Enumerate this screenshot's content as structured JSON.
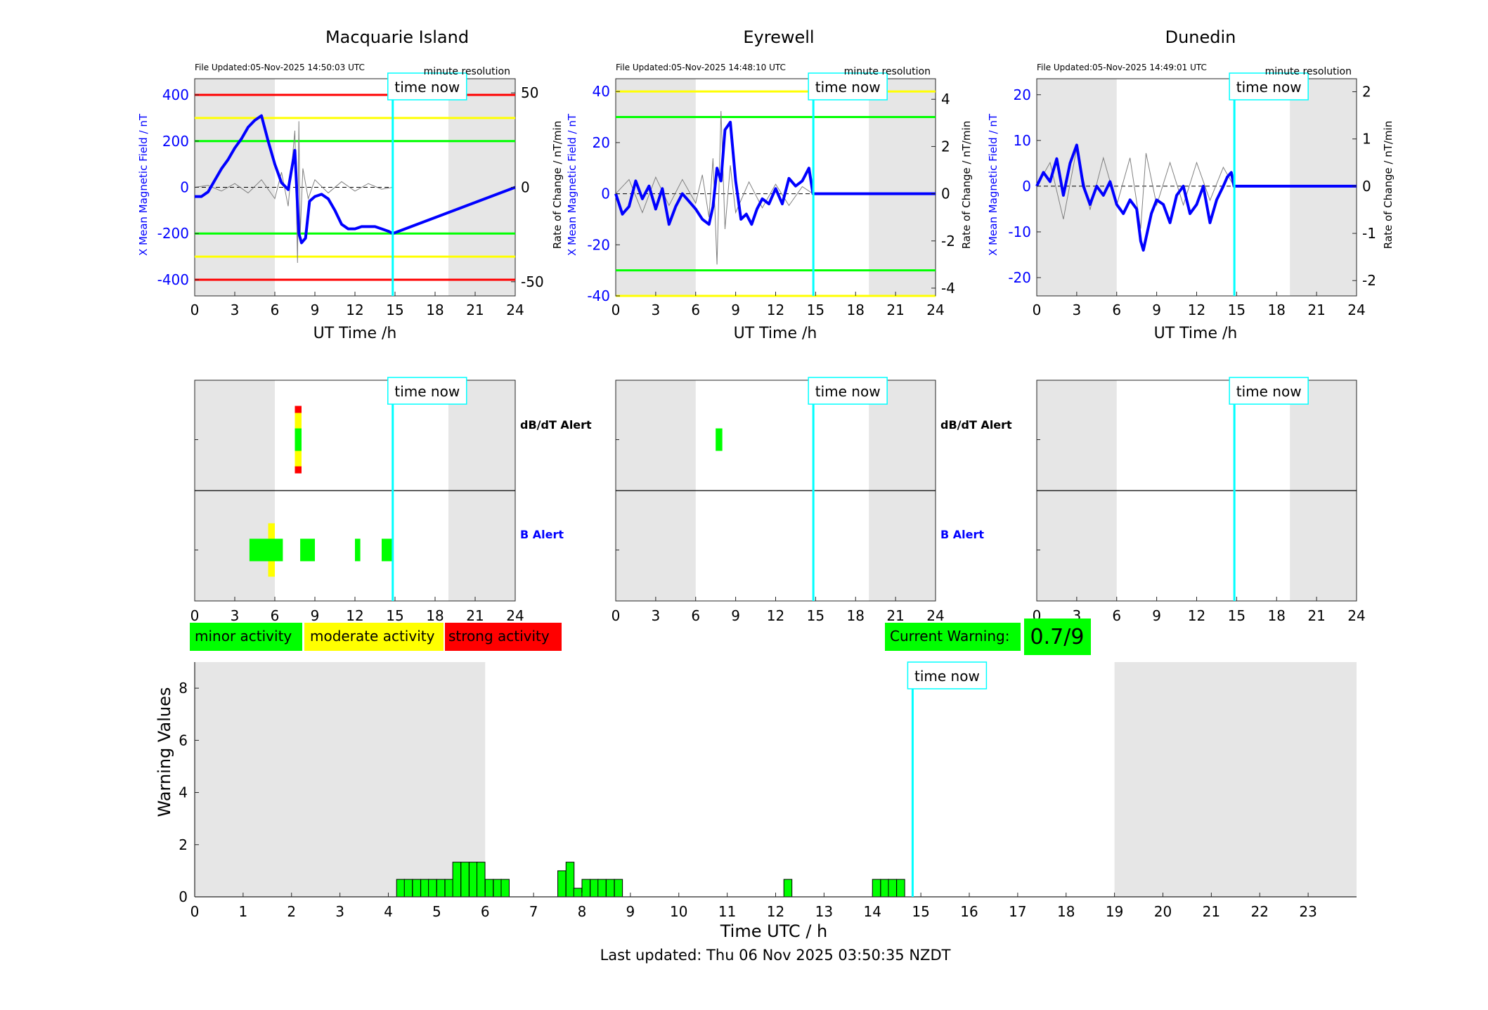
{
  "stations": [
    {
      "title": "Macquarie Island",
      "file_updated": "File Updated:05-Nov-2025 14:50:03 UTC",
      "resolution": "minute resolution",
      "ylabel_left": "X Mean Magnetic Field / nT",
      "ylabel_right": "Rate of Change / nT/min",
      "ylim": [
        -470,
        470
      ],
      "yticks_left": [
        -400,
        -200,
        0,
        200,
        400
      ],
      "right_scale": 0.125,
      "yticks_right": [
        -50,
        0,
        50
      ],
      "green_level": 200,
      "yellow_level": 300,
      "red_level": 400,
      "shaded_ranges": [
        [
          0,
          6
        ],
        [
          19,
          24
        ]
      ],
      "x_main": [
        0,
        0.5,
        1,
        1.5,
        2,
        2.5,
        3,
        3.5,
        4,
        4.5,
        5,
        5.5,
        6,
        6.5,
        7,
        7.5,
        7.8,
        8,
        8.3,
        8.6,
        9,
        9.5,
        10,
        10.5,
        11,
        11.5,
        12,
        12.5,
        13,
        13.5,
        14,
        14.5,
        14.83,
        24
      ],
      "y_main": [
        -40,
        -40,
        -20,
        30,
        80,
        120,
        170,
        210,
        260,
        290,
        310,
        200,
        100,
        20,
        -10,
        160,
        -200,
        -240,
        -220,
        -60,
        -40,
        -30,
        -50,
        -100,
        -160,
        -180,
        -180,
        -170,
        -170,
        -170,
        -180,
        -190,
        -200,
        0
      ],
      "x_rate": [
        0,
        1,
        2,
        3,
        4,
        5,
        6,
        6.5,
        7,
        7.5,
        7.7,
        7.8,
        7.9,
        8.1,
        8.5,
        9,
        10,
        11,
        12,
        13,
        14,
        14.83
      ],
      "y_rate": [
        0,
        1,
        -2,
        2,
        -3,
        4,
        -6,
        8,
        -10,
        30,
        -40,
        35,
        -25,
        10,
        -6,
        4,
        -3,
        3,
        -2,
        2,
        -1,
        0
      ]
    },
    {
      "title": "Eyrewell",
      "file_updated": "File Updated:05-Nov-2025 14:48:10 UTC",
      "resolution": "minute resolution",
      "ylabel_left": "X Mean Magnetic Field / nT",
      "ylabel_right": "Rate of Change / nT/min",
      "ylim": [
        -40,
        45
      ],
      "yticks_left": [
        -40,
        -20,
        0,
        20,
        40
      ],
      "right_scale": 10,
      "yticks_right": [
        -4,
        -2,
        0,
        2,
        4
      ],
      "green_level": 30,
      "yellow_level": 40,
      "shaded_ranges": [
        [
          0,
          6
        ],
        [
          19,
          24
        ]
      ],
      "x_main": [
        0,
        0.5,
        1,
        1.5,
        2,
        2.5,
        3,
        3.5,
        4,
        4.5,
        5,
        5.5,
        6,
        6.5,
        7,
        7.3,
        7.6,
        7.9,
        8.2,
        8.6,
        9,
        9.4,
        9.8,
        10.2,
        10.6,
        11,
        11.5,
        12,
        12.5,
        13,
        13.5,
        14,
        14.5,
        14.8,
        24
      ],
      "y_main": [
        0,
        -8,
        -5,
        5,
        -2,
        3,
        -6,
        2,
        -12,
        -5,
        0,
        -3,
        -6,
        -10,
        -12,
        -5,
        10,
        5,
        25,
        28,
        5,
        -10,
        -8,
        -12,
        -6,
        -2,
        -4,
        2,
        -4,
        6,
        3,
        5,
        10,
        0,
        0
      ],
      "x_rate": [
        0,
        1,
        2,
        3,
        4,
        5,
        6,
        6.5,
        7,
        7.3,
        7.6,
        7.9,
        8.2,
        8.6,
        9,
        10,
        11,
        12,
        13,
        14,
        14.8
      ],
      "y_rate": [
        0,
        0.6,
        -0.8,
        0.7,
        -0.5,
        0.6,
        -0.4,
        0.8,
        -1,
        1.5,
        -3,
        3.5,
        -1.5,
        1.2,
        -0.8,
        0.5,
        -0.6,
        0.4,
        -0.5,
        0.3,
        0
      ]
    },
    {
      "title": "Dunedin",
      "file_updated": "File Updated:05-Nov-2025 14:49:01 UTC",
      "resolution": "minute resolution",
      "ylabel_left": "X Mean Magnetic Field / nT",
      "ylabel_right": "Rate of Change / nT/min",
      "ylim": [
        -24,
        23.5
      ],
      "yticks_left": [
        -20,
        -10,
        0,
        10,
        20
      ],
      "right_scale": 10,
      "yticks_right": [
        -2,
        -1,
        0,
        1,
        2
      ],
      "shaded_ranges": [
        [
          0,
          6
        ],
        [
          19,
          24
        ]
      ],
      "x_main": [
        0,
        0.5,
        1,
        1.5,
        2,
        2.5,
        3,
        3.5,
        4,
        4.5,
        5,
        5.5,
        6,
        6.5,
        7,
        7.5,
        7.8,
        8,
        8.3,
        8.6,
        9,
        9.5,
        10,
        10.5,
        11,
        11.5,
        12,
        12.5,
        13,
        13.5,
        14,
        14.3,
        14.6,
        14.8,
        24
      ],
      "y_main": [
        0,
        3,
        1,
        6,
        -2,
        5,
        9,
        0,
        -4,
        0,
        -2,
        1,
        -4,
        -6,
        -3,
        -5,
        -12,
        -14,
        -10,
        -6,
        -3,
        -4,
        -8,
        -2,
        0,
        -6,
        -4,
        0,
        -8,
        -3,
        0,
        2,
        3,
        0,
        0
      ],
      "x_rate": [
        0,
        1,
        2,
        3,
        4,
        5,
        6,
        7,
        7.8,
        8.2,
        9,
        10,
        11,
        12,
        13,
        14,
        14.8
      ],
      "y_rate": [
        0,
        0.5,
        -0.7,
        0.8,
        -0.5,
        0.6,
        -0.4,
        0.6,
        -0.9,
        0.7,
        -0.4,
        0.5,
        -0.4,
        0.5,
        -0.3,
        0.4,
        0
      ]
    }
  ],
  "xlabel_top": "UT Time /h",
  "xticks_top": [
    0,
    3,
    6,
    9,
    12,
    15,
    18,
    21,
    24
  ],
  "time_now": 14.83,
  "time_now_label": "time now",
  "alert_labels": {
    "dbdt": "dB/dT Alert",
    "b": "B Alert"
  },
  "alerts": [
    {
      "dbdt": [
        {
          "start": 7.5,
          "end": 8.0,
          "severity": "strong"
        },
        {
          "start": 7.5,
          "end": 8.0,
          "severity": "moderate"
        },
        {
          "start": 7.5,
          "end": 8.0,
          "severity": "minor"
        }
      ],
      "b": [
        {
          "start": 5.5,
          "end": 6.0,
          "severity": "moderate"
        },
        {
          "start": 4.1,
          "end": 6.6,
          "severity": "minor"
        },
        {
          "start": 7.9,
          "end": 9.0,
          "severity": "minor"
        },
        {
          "start": 12.0,
          "end": 12.4,
          "severity": "minor"
        },
        {
          "start": 14.0,
          "end": 14.8,
          "severity": "minor"
        }
      ]
    },
    {
      "dbdt": [
        {
          "start": 7.5,
          "end": 8.0,
          "severity": "minor"
        }
      ],
      "b": []
    },
    {
      "dbdt": [],
      "b": []
    }
  ],
  "legend": {
    "minor": "minor activity",
    "moderate": "moderate activity",
    "strong": "strong activity"
  },
  "current_warning": {
    "label": "Current Warning:",
    "value": "0.7/9"
  },
  "warning_chart": {
    "type": "bar",
    "ylabel": "Warning Values",
    "xlabel": "Time UTC / h",
    "xlim": [
      0,
      24
    ],
    "ylim": [
      0,
      9
    ],
    "yticks": [
      0,
      2,
      4,
      6,
      8
    ],
    "xticks": [
      0,
      1,
      2,
      3,
      4,
      5,
      6,
      7,
      8,
      9,
      10,
      11,
      12,
      13,
      14,
      15,
      16,
      17,
      18,
      19,
      20,
      21,
      22,
      23
    ],
    "shaded_ranges": [
      [
        0,
        6
      ],
      [
        19,
        24
      ]
    ],
    "bin_width": 0.1667,
    "bar_starts": [
      4.17,
      4.33,
      4.5,
      4.67,
      4.83,
      5.0,
      5.17,
      5.33,
      5.5,
      5.67,
      5.83,
      6.0,
      6.17,
      6.33,
      7.5,
      7.67,
      7.83,
      8.0,
      8.17,
      8.33,
      8.5,
      8.67,
      12.17,
      14.0,
      14.17,
      14.33,
      14.5
    ],
    "values": [
      0.67,
      0.67,
      0.67,
      0.67,
      0.67,
      0.67,
      0.67,
      1.33,
      1.33,
      1.33,
      1.33,
      0.67,
      0.67,
      0.67,
      1.0,
      1.33,
      0.33,
      0.67,
      0.67,
      0.67,
      0.67,
      0.67,
      0.67,
      0.67,
      0.67,
      0.67,
      0.67
    ]
  },
  "colors": {
    "minor": "#00ff00",
    "moderate": "#ffff00",
    "strong": "#ff0000",
    "main_line": "#0000ff",
    "rate_line": "#808080",
    "time_now": "#00ffff",
    "shade": "#e6e6e6"
  },
  "last_updated": "Last updated: Thu 06 Nov 2025 03:50:35 NZDT"
}
